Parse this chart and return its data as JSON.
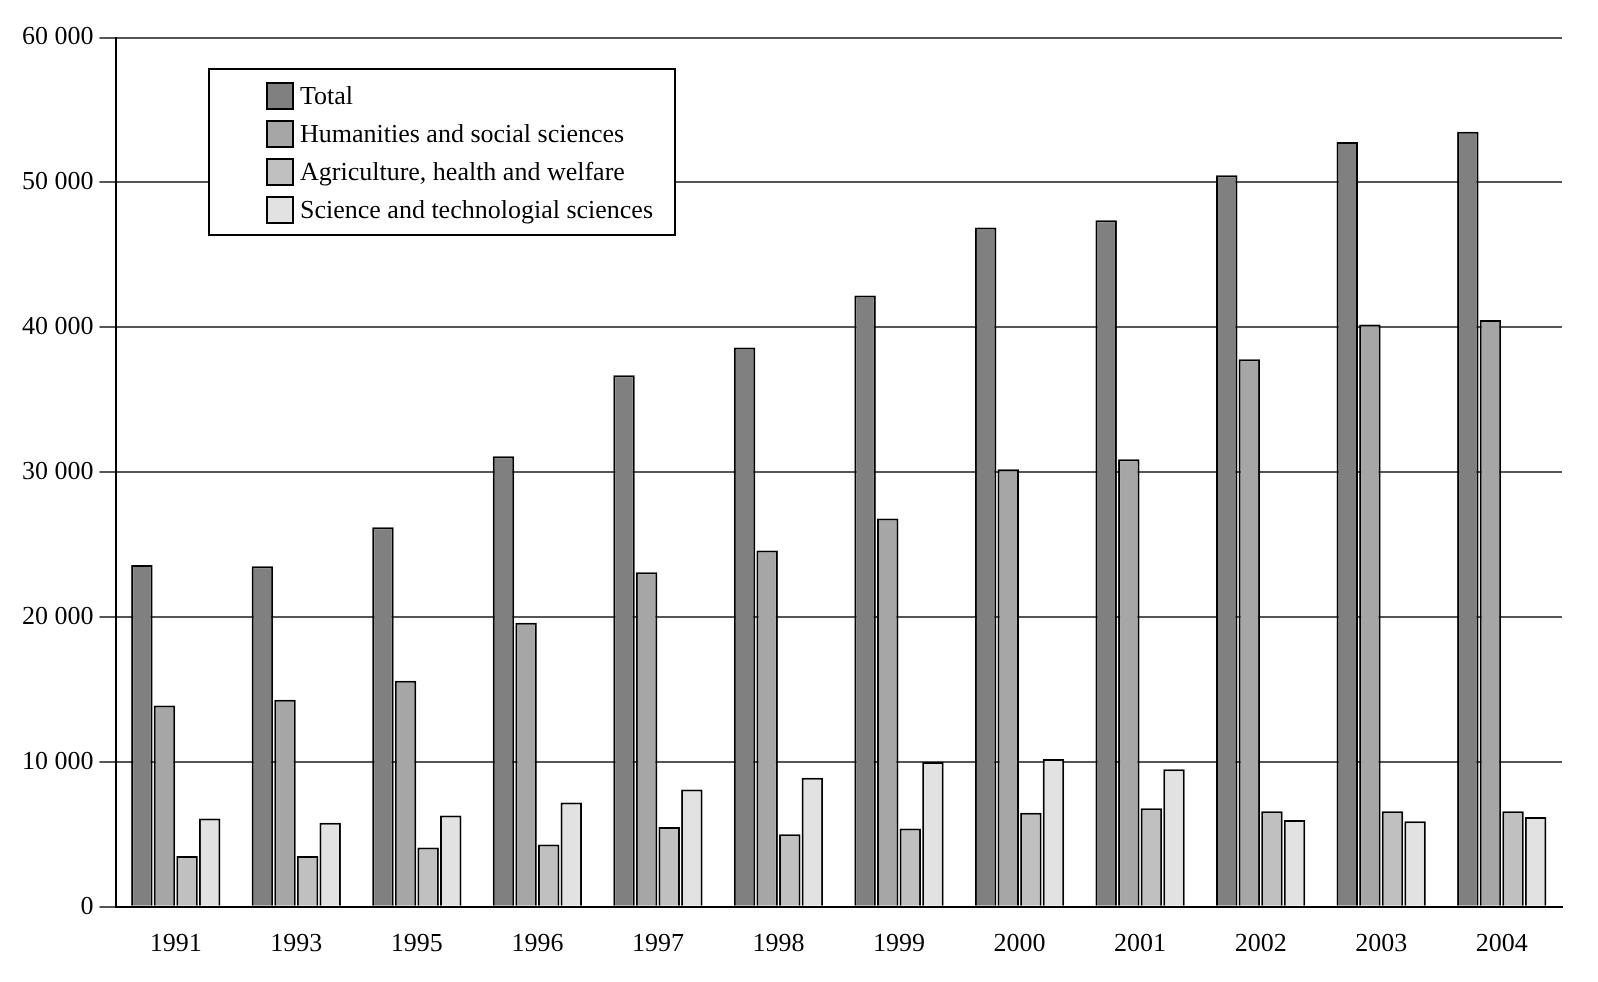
{
  "chart_data": {
    "type": "bar",
    "categories": [
      "1991",
      "1993",
      "1995",
      "1996",
      "1997",
      "1998",
      "1999",
      "2000",
      "2001",
      "2002",
      "2003",
      "2004"
    ],
    "series": [
      {
        "name": "Total",
        "color": "#808080",
        "values": [
          23600,
          23500,
          26200,
          31100,
          36700,
          38600,
          42200,
          46900,
          47400,
          50500,
          52800,
          53500
        ]
      },
      {
        "name": "Humanities and social sciences",
        "color": "#a6a6a6",
        "values": [
          13900,
          14300,
          15600,
          19600,
          23100,
          24600,
          26800,
          30200,
          30900,
          37800,
          40200,
          40500
        ]
      },
      {
        "name": "Agriculture, health and welfare",
        "color": "#c0c0c0",
        "values": [
          3500,
          3500,
          4100,
          4300,
          5500,
          5000,
          5400,
          6500,
          6800,
          6600,
          6600,
          6600
        ]
      },
      {
        "name": "Science and technologial sciences",
        "color": "#e2e2e2",
        "values": [
          6100,
          5800,
          6300,
          7200,
          8100,
          8900,
          10000,
          10200,
          9500,
          6000,
          5900,
          6200
        ]
      }
    ],
    "ylim": [
      0,
      60000
    ],
    "yticks": [
      {
        "value": 0,
        "label": "0"
      },
      {
        "value": 10000,
        "label": "10 000"
      },
      {
        "value": 20000,
        "label": "20 000"
      },
      {
        "value": 30000,
        "label": "30 000"
      },
      {
        "value": 40000,
        "label": "40 000"
      },
      {
        "value": 50000,
        "label": "50 000"
      },
      {
        "value": 60000,
        "label": "60 000"
      }
    ],
    "grid": "y",
    "legend": "top left"
  }
}
